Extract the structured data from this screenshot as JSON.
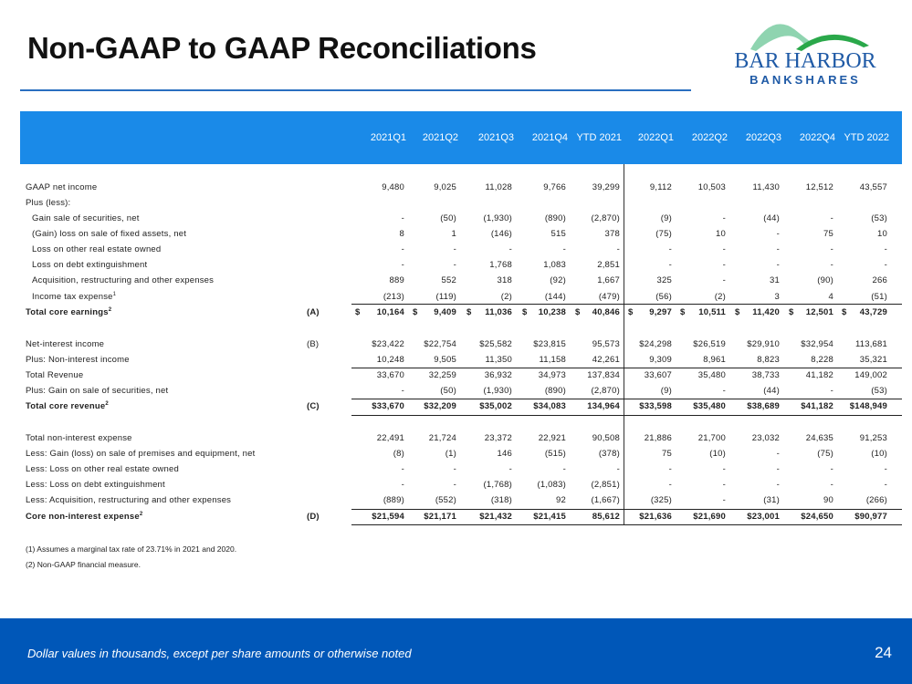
{
  "title": "Non-GAAP to GAAP Reconciliations",
  "logo": {
    "line1": "BAR HARBOR",
    "line2": "BANKSHARES",
    "colors": {
      "blue": "#1f5aa6",
      "green": "#2aa84a",
      "light_green": "#8fd4b0"
    }
  },
  "columns": [
    "2021Q1",
    "2021Q2",
    "2021Q3",
    "2021Q4",
    "YTD 2021",
    "2022Q1",
    "2022Q2",
    "2022Q3",
    "2022Q4",
    "YTD 2022"
  ],
  "rows": [
    {
      "label": "GAAP net income",
      "values": [
        "9,480",
        "9,025",
        "11,028",
        "9,766",
        "39,299",
        "9,112",
        "10,503",
        "11,430",
        "12,512",
        "43,557"
      ]
    },
    {
      "label": "Plus (less):",
      "values": []
    },
    {
      "label": "Gain sale of securities, net",
      "indent": true,
      "values": [
        "-",
        "(50)",
        "(1,930)",
        "(890)",
        "(2,870)",
        "(9)",
        "-",
        "(44)",
        "-",
        "(53)"
      ]
    },
    {
      "label": "(Gain) loss on  sale of fixed assets, net",
      "indent": true,
      "values": [
        "8",
        "1",
        "(146)",
        "515",
        "378",
        "(75)",
        "10",
        "-",
        "75",
        "10"
      ]
    },
    {
      "label": "Loss on other real estate owned",
      "indent": true,
      "values": [
        "-",
        "-",
        "-",
        "-",
        "-",
        "-",
        "-",
        "-",
        "-",
        "-"
      ]
    },
    {
      "label": "Loss on debt extinguishment",
      "indent": true,
      "values": [
        "-",
        "-",
        "1,768",
        "1,083",
        "2,851",
        "-",
        "-",
        "-",
        "-",
        "-"
      ]
    },
    {
      "label": "Acquisition, restructuring and other expenses",
      "indent": true,
      "values": [
        "889",
        "552",
        "318",
        "(92)",
        "1,667",
        "325",
        "-",
        "31",
        "(90)",
        "266"
      ]
    },
    {
      "label": "Income tax expense",
      "sup": "1",
      "indent": true,
      "values": [
        "(213)",
        "(119)",
        "(2)",
        "(144)",
        "(479)",
        "(56)",
        "(2)",
        "3",
        "4",
        "(51)"
      ]
    },
    {
      "label": "Total core earnings",
      "sup": "2",
      "bold": true,
      "letter": "(A)",
      "currency": "$",
      "values": [
        "10,164",
        "9,409",
        "11,036",
        "10,238",
        "40,846",
        "9,297",
        "10,511",
        "11,420",
        "12,501",
        "43,729"
      ]
    },
    {
      "label": "Net-interest income",
      "letter": "(B)",
      "values": [
        "$23,422",
        "$22,754",
        "$25,582",
        "$23,815",
        "95,573",
        "$24,298",
        "$26,519",
        "$29,910",
        "$32,954",
        "113,681"
      ]
    },
    {
      "label": "Plus: Non-interest income",
      "values": [
        "10,248",
        "9,505",
        "11,350",
        "11,158",
        "42,261",
        "9,309",
        "8,961",
        "8,823",
        "8,228",
        "35,321"
      ]
    },
    {
      "label": "Total Revenue",
      "values": [
        "33,670",
        "32,259",
        "36,932",
        "34,973",
        "137,834",
        "33,607",
        "35,480",
        "38,733",
        "41,182",
        "149,002"
      ]
    },
    {
      "label": "Plus: Gain on sale of securities, net",
      "values": [
        "-",
        "(50)",
        "(1,930)",
        "(890)",
        "(2,870)",
        "(9)",
        "-",
        "(44)",
        "-",
        "(53)"
      ]
    },
    {
      "label": "Total core revenue",
      "sup": "2",
      "bold": true,
      "letter": "(C)",
      "values": [
        "$33,670",
        "$32,209",
        "$35,002",
        "$34,083",
        "134,964",
        "$33,598",
        "$35,480",
        "$38,689",
        "$41,182",
        "$148,949"
      ]
    },
    {
      "label": "Total non-interest expense",
      "values": [
        "22,491",
        "21,724",
        "23,372",
        "22,921",
        "90,508",
        "21,886",
        "21,700",
        "23,032",
        "24,635",
        "91,253"
      ]
    },
    {
      "label": "Less: Gain (loss) on sale of premises and equipment, net",
      "values": [
        "(8)",
        "(1)",
        "146",
        "(515)",
        "(378)",
        "75",
        "(10)",
        "-",
        "(75)",
        "(10)"
      ]
    },
    {
      "label": "Less: Loss on other real estate owned",
      "values": [
        "-",
        "-",
        "-",
        "-",
        "-",
        "-",
        "-",
        "-",
        "-",
        "-"
      ]
    },
    {
      "label": "Less: Loss on debt extinguishment",
      "values": [
        "-",
        "-",
        "(1,768)",
        "(1,083)",
        "(2,851)",
        "-",
        "-",
        "-",
        "-",
        "-"
      ]
    },
    {
      "label": "Less: Acquisition, restructuring and other expenses",
      "values": [
        "(889)",
        "(552)",
        "(318)",
        "92",
        "(1,667)",
        "(325)",
        "-",
        "(31)",
        "90",
        "(266)"
      ]
    },
    {
      "label": "Core non-interest expense",
      "sup": "2",
      "bold": true,
      "letter": "(D)",
      "values": [
        "$21,594",
        "$21,171",
        "$21,432",
        "$21,415",
        "85,612",
        "$21,636",
        "$21,690",
        "$23,001",
        "$24,650",
        "$90,977"
      ]
    }
  ],
  "footnotes": [
    "(1) Assumes a marginal tax rate of 23.71% in 2021 and 2020.",
    "(2) Non-GAAP financial measure."
  ],
  "footer": {
    "note": "Dollar values in thousands, except per share amounts or otherwise noted",
    "page": "24"
  }
}
